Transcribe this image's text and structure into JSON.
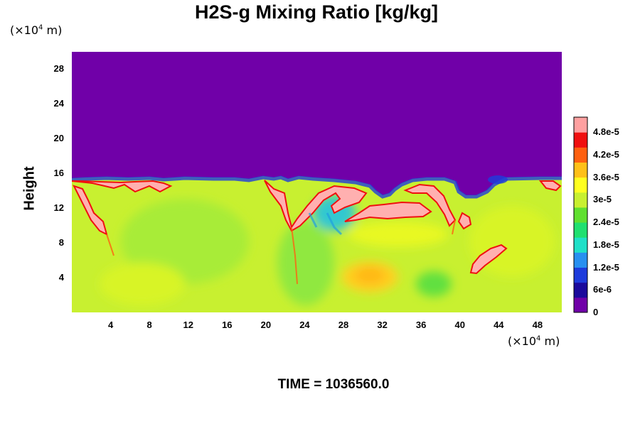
{
  "title": "H2S-g Mixing Ratio [kg/kg]",
  "y_unit": {
    "prefix": "(×10",
    "exp": "4",
    "suffix": " m)"
  },
  "x_unit": {
    "prefix": "(×10",
    "exp": "4",
    "suffix": " m)"
  },
  "footer": "TIME = 1036560.0",
  "colors": {
    "background_low": "#7000a8",
    "ambient": "#c8f030",
    "high": "#ffb0b0",
    "ramp": [
      "#7000a8",
      "#1b0a9c",
      "#1e3cdc",
      "#2890f0",
      "#20e0c8",
      "#20e070",
      "#60e030",
      "#c8f030",
      "#ffff20",
      "#ffc018",
      "#ff6010",
      "#f01010",
      "#ffa0a0"
    ]
  },
  "chart_data": {
    "type": "heatmap",
    "title": "H2S-g Mixing Ratio [kg/kg]",
    "xlabel": "",
    "ylabel": "Height",
    "x_unit": "(×10^4 m)",
    "y_unit": "(×10^4 m)",
    "xlim": [
      0,
      50.5
    ],
    "ylim": [
      0,
      30
    ],
    "x_ticks": [
      4,
      8,
      12,
      16,
      20,
      24,
      28,
      32,
      36,
      40,
      44,
      48
    ],
    "y_ticks": [
      4,
      8,
      12,
      16,
      20,
      24,
      28
    ],
    "colorbar": {
      "min": 0,
      "max": 5.2e-05,
      "tick_values": [
        0,
        6e-06,
        1.2e-05,
        1.8e-05,
        2.4e-05,
        3e-05,
        3.6e-05,
        4.2e-05,
        4.8e-05
      ],
      "tick_labels": [
        "0",
        "6e-6",
        "1.2e-5",
        "1.8e-5",
        "2.4e-5",
        "3e-5",
        "3.6e-5",
        "4.2e-5",
        "4.8e-5"
      ]
    },
    "field_summary": {
      "upper_layer_value": 0,
      "interface_height": 15.5,
      "ambient_lower_value": 3.3e-05,
      "maximum_value": 5.2e-05
    },
    "annotation": "TIME = 1036560.0"
  }
}
